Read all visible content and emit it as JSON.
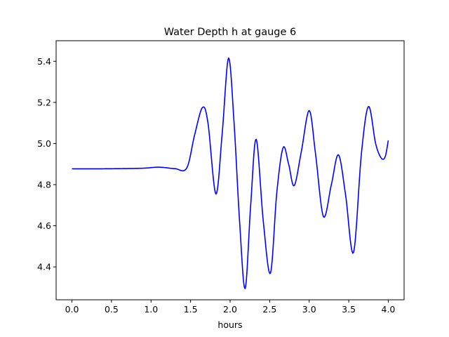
{
  "chart_data": {
    "type": "line",
    "title": "Water Depth h at gauge 6",
    "xlabel": "hours",
    "ylabel": "",
    "xlim": [
      -0.2,
      4.2
    ],
    "ylim": [
      4.24,
      5.5
    ],
    "xticks": [
      0.0,
      0.5,
      1.0,
      1.5,
      2.0,
      2.5,
      3.0,
      3.5,
      4.0
    ],
    "xtick_labels": [
      "0.0",
      "0.5",
      "1.0",
      "1.5",
      "2.0",
      "2.5",
      "3.0",
      "3.5",
      "4.0"
    ],
    "yticks": [
      4.4,
      4.6,
      4.8,
      5.0,
      5.2,
      5.4
    ],
    "ytick_labels": [
      "4.4",
      "4.6",
      "4.8",
      "5.0",
      "5.2",
      "5.4"
    ],
    "grid": false,
    "series": [
      {
        "color": "#0000ff",
        "x": [
          0.0,
          0.3,
          0.6,
          0.9,
          1.1,
          1.3,
          1.45,
          1.55,
          1.65,
          1.72,
          1.82,
          1.9,
          1.98,
          2.05,
          2.12,
          2.19,
          2.26,
          2.33,
          2.42,
          2.51,
          2.59,
          2.67,
          2.74,
          2.81,
          2.9,
          3.0,
          3.08,
          3.18,
          3.28,
          3.37,
          3.46,
          3.56,
          3.66,
          3.75,
          3.84,
          3.91,
          3.96,
          4.0
        ],
        "y": [
          4.877,
          4.877,
          4.878,
          4.88,
          4.885,
          4.878,
          4.88,
          5.04,
          5.175,
          5.1,
          4.755,
          5.05,
          5.415,
          5.1,
          4.62,
          4.295,
          4.7,
          5.02,
          4.62,
          4.37,
          4.76,
          4.98,
          4.9,
          4.795,
          4.96,
          5.16,
          4.95,
          4.645,
          4.8,
          4.945,
          4.75,
          4.47,
          4.95,
          5.18,
          5.0,
          4.93,
          4.935,
          5.015
        ]
      }
    ]
  }
}
